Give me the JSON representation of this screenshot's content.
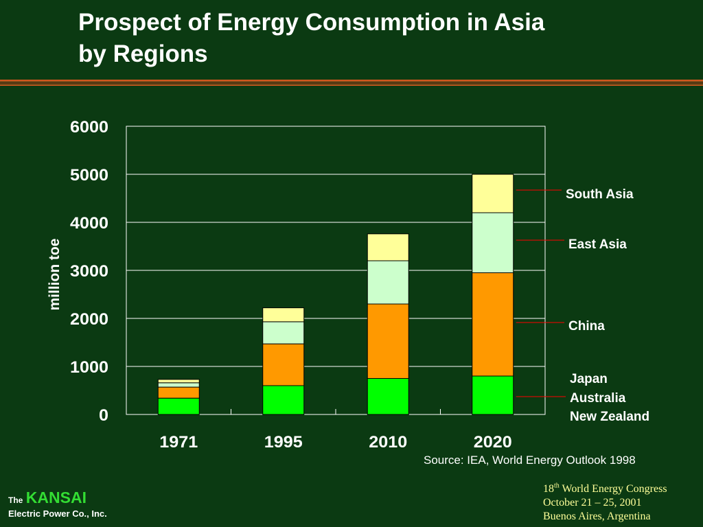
{
  "slide": {
    "title_line1": "Prospect of Energy Consumption in Asia",
    "title_line2": "by Regions",
    "source": "Source: IEA, World Energy Outlook 1998"
  },
  "footer": {
    "logo_the": "The",
    "logo_name": "KANSAI",
    "logo_company": "Electric Power Co., Inc.",
    "event_ordinal": "18",
    "event_suffix": "th",
    "event_name": " World Energy Congress",
    "event_dates": "October 21 – 25, 2001",
    "event_place": "Buenos Aires, Argentina"
  },
  "colors": {
    "background": "#0b3a12",
    "rule": "#c8561e",
    "japan": "#00ff00",
    "china": "#ff9900",
    "east_asia": "#ccffcc",
    "south_asia": "#ffff99",
    "leader": "#ff0000"
  },
  "chart_data": {
    "type": "bar",
    "stacked": true,
    "categories": [
      "1971",
      "1995",
      "2010",
      "2020"
    ],
    "series": [
      {
        "name": "Japan\nAustralia\nNew Zealand",
        "values": [
          340,
          600,
          750,
          800
        ],
        "color": "#00ff00"
      },
      {
        "name": "China",
        "values": [
          230,
          870,
          1550,
          2150
        ],
        "color": "#ff9900"
      },
      {
        "name": "East Asia",
        "values": [
          90,
          460,
          900,
          1250
        ],
        "color": "#ccffcc"
      },
      {
        "name": "South Asia",
        "values": [
          70,
          290,
          560,
          800
        ],
        "color": "#ffff99"
      }
    ],
    "title": "",
    "xlabel": "",
    "ylabel": "million toe",
    "ylim": [
      0,
      6000
    ],
    "yticks": [
      "0",
      "1000",
      "2000",
      "3000",
      "4000",
      "5000",
      "6000"
    ],
    "grid": true,
    "legend": "right, labels beside 2020 bar"
  }
}
